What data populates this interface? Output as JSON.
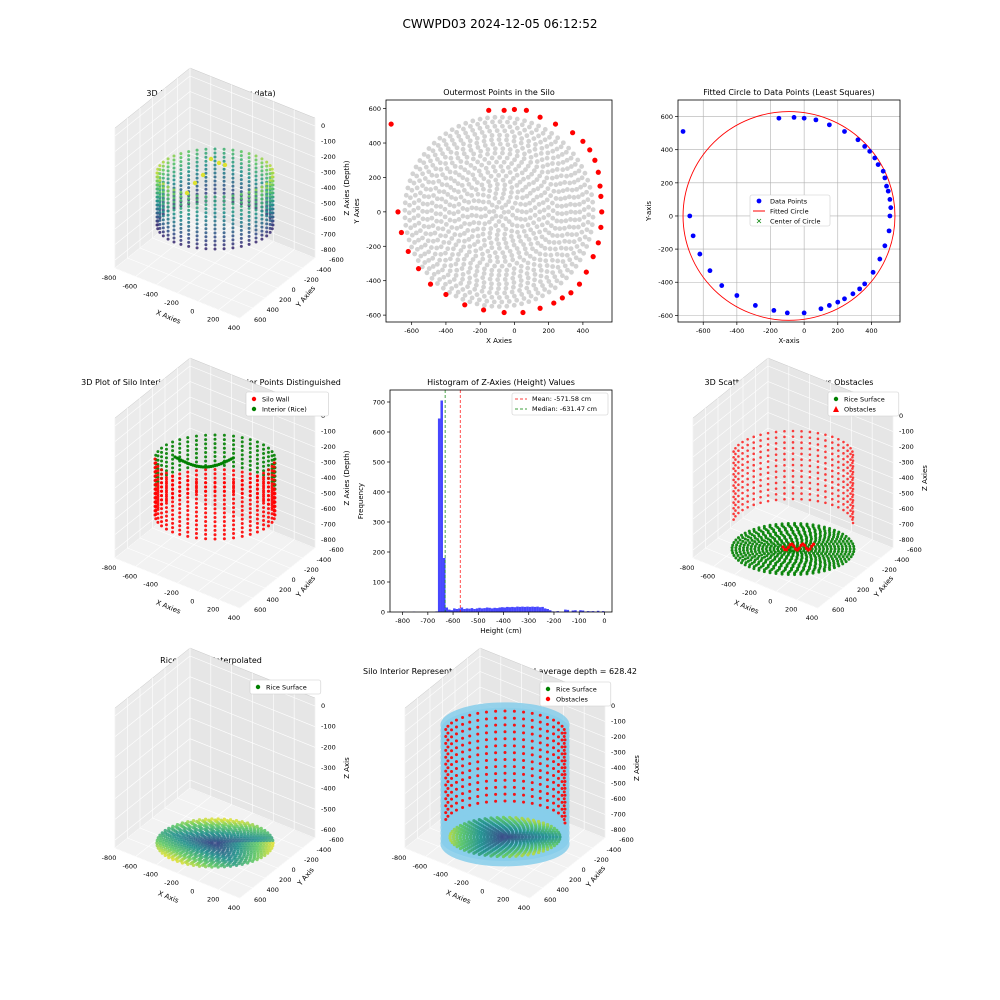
{
  "suptitle": "CWWPD03 2024-12-05 06:12:52",
  "palette": {
    "gray": "#d3d3d3",
    "red": "#ff0000",
    "blue": "#0000ff",
    "green": "#008000",
    "sky": "#87ceeb",
    "hist": "#0000ff"
  },
  "chart_data": [
    {
      "id": "p1",
      "type": "scatter3d",
      "title": "3D Plot of Silo Interior(row data)",
      "xlabel": "X Axies",
      "ylabel": "Y Axies",
      "zlabel": "Z Axies (Depth)",
      "xticks": [
        "-800",
        "-600",
        "-400",
        "-200",
        "0",
        "200",
        "400"
      ],
      "yticks": [
        "-600",
        "-400",
        "-200",
        "0",
        "200",
        "400",
        "600"
      ],
      "zticks": [
        "0",
        "-100",
        "-200",
        "-300",
        "-400",
        "-500",
        "-600",
        "-700",
        "-800"
      ],
      "colormap": "viridis"
    },
    {
      "id": "p2",
      "type": "scatter",
      "title": "Outermost Points in the Silo",
      "xlabel": "X Axies",
      "ylabel": "Y Axies",
      "xlim": [
        -750,
        570
      ],
      "ylim": [
        -640,
        650
      ],
      "xticks": [
        -600,
        -400,
        -200,
        0,
        200,
        400
      ],
      "yticks": [
        -600,
        -400,
        -200,
        0,
        200,
        400,
        600
      ],
      "series": [
        {
          "role": "outer",
          "color": "#ff0000",
          "points": [
            [
              -720,
              510
            ],
            [
              -680,
              0
            ],
            [
              -660,
              -120
            ],
            [
              -620,
              -230
            ],
            [
              -560,
              -330
            ],
            [
              -490,
              -420
            ],
            [
              -400,
              -480
            ],
            [
              -290,
              -540
            ],
            [
              -180,
              -570
            ],
            [
              -60,
              -585
            ],
            [
              50,
              -585
            ],
            [
              150,
              -560
            ],
            [
              230,
              -530
            ],
            [
              280,
              -500
            ],
            [
              330,
              -470
            ],
            [
              380,
              -420
            ],
            [
              420,
              -350
            ],
            [
              460,
              -260
            ],
            [
              490,
              -180
            ],
            [
              505,
              -90
            ],
            [
              510,
              0
            ],
            [
              505,
              90
            ],
            [
              500,
              150
            ],
            [
              490,
              230
            ],
            [
              470,
              300
            ],
            [
              440,
              360
            ],
            [
              400,
              410
            ],
            [
              340,
              460
            ],
            [
              240,
              510
            ],
            [
              150,
              550
            ],
            [
              70,
              590
            ],
            [
              0,
              595
            ],
            [
              -60,
              590
            ],
            [
              -150,
              590
            ]
          ]
        },
        {
          "role": "interior",
          "color": "#d3d3d3",
          "generated": true
        }
      ]
    },
    {
      "id": "p3",
      "type": "scatter+circle",
      "title": "Fitted Circle to Data Points (Least Squares)",
      "xlabel": "X-axis",
      "ylabel": "Y-axis",
      "xlim": [
        -750,
        570
      ],
      "ylim": [
        -640,
        700
      ],
      "xticks": [
        -600,
        -400,
        -200,
        0,
        200,
        400
      ],
      "yticks": [
        -600,
        -400,
        -200,
        0,
        200,
        400,
        600
      ],
      "grid": true,
      "legend": "center",
      "circle": {
        "cx": -90,
        "cy": 0,
        "r": 630
      },
      "legend_entries": [
        "Data Points",
        "Fitted Circle",
        "Center of Circle"
      ],
      "series": [
        {
          "name": "Data Points",
          "color": "#0000ff",
          "points": [
            [
              -720,
              510
            ],
            [
              -680,
              0
            ],
            [
              -660,
              -120
            ],
            [
              -620,
              -230
            ],
            [
              -560,
              -330
            ],
            [
              -490,
              -420
            ],
            [
              -400,
              -480
            ],
            [
              -290,
              -540
            ],
            [
              -180,
              -570
            ],
            [
              -100,
              -585
            ],
            [
              0,
              -585
            ],
            [
              100,
              -560
            ],
            [
              150,
              -540
            ],
            [
              200,
              -520
            ],
            [
              240,
              -500
            ],
            [
              290,
              -470
            ],
            [
              330,
              -440
            ],
            [
              360,
              -410
            ],
            [
              410,
              -340
            ],
            [
              450,
              -260
            ],
            [
              480,
              -180
            ],
            [
              505,
              -90
            ],
            [
              510,
              0
            ],
            [
              515,
              50
            ],
            [
              510,
              100
            ],
            [
              500,
              150
            ],
            [
              490,
              180
            ],
            [
              480,
              230
            ],
            [
              470,
              270
            ],
            [
              440,
              310
            ],
            [
              420,
              350
            ],
            [
              390,
              390
            ],
            [
              360,
              420
            ],
            [
              320,
              460
            ],
            [
              240,
              510
            ],
            [
              150,
              550
            ],
            [
              70,
              580
            ],
            [
              0,
              590
            ],
            [
              -60,
              595
            ],
            [
              -150,
              590
            ]
          ]
        }
      ]
    },
    {
      "id": "p4",
      "type": "scatter3d",
      "title": "3D Plot of Silo Interior with Wall and Interior Points Distinguished",
      "xlabel": "X Axies",
      "ylabel": "Y Axies",
      "zlabel": "Z Axies (Depth)",
      "xticks": [
        "-800",
        "-600",
        "-400",
        "-200",
        "0",
        "200",
        "400"
      ],
      "yticks": [
        "-600",
        "-400",
        "-200",
        "0",
        "200",
        "400",
        "600"
      ],
      "zticks": [
        "0",
        "-100",
        "-200",
        "-300",
        "-400",
        "-500",
        "-600",
        "-700",
        "-800"
      ],
      "legend_entries": [
        "Silo Wall",
        "Interior (Rice)"
      ],
      "legend": "top-right"
    },
    {
      "id": "p5",
      "type": "histogram",
      "title": "Histogram of Z-Axies (Height) Values",
      "xlabel": "Height (cm)",
      "ylabel": "Frequency",
      "xlim": [
        -850,
        30
      ],
      "ylim": [
        0,
        740
      ],
      "xticks": [
        -800,
        -700,
        -600,
        -500,
        -400,
        -300,
        -200,
        -100,
        0
      ],
      "yticks": [
        0,
        100,
        200,
        300,
        400,
        500,
        600,
        700
      ],
      "bin_width": 10,
      "bins": [
        [
          -800,
          1
        ],
        [
          -790,
          0
        ],
        [
          -780,
          0
        ],
        [
          -770,
          0
        ],
        [
          -760,
          1
        ],
        [
          -750,
          0
        ],
        [
          -740,
          0
        ],
        [
          -730,
          0
        ],
        [
          -720,
          0
        ],
        [
          -710,
          0
        ],
        [
          -700,
          0
        ],
        [
          -690,
          0
        ],
        [
          -680,
          0
        ],
        [
          -670,
          2
        ],
        [
          -660,
          645
        ],
        [
          -650,
          705
        ],
        [
          -640,
          180
        ],
        [
          -630,
          15
        ],
        [
          -620,
          8
        ],
        [
          -610,
          6
        ],
        [
          -600,
          12
        ],
        [
          -590,
          10
        ],
        [
          -580,
          12
        ],
        [
          -570,
          15
        ],
        [
          -560,
          10
        ],
        [
          -550,
          12
        ],
        [
          -540,
          11
        ],
        [
          -530,
          13
        ],
        [
          -520,
          10
        ],
        [
          -510,
          12
        ],
        [
          -500,
          14
        ],
        [
          -490,
          12
        ],
        [
          -480,
          13
        ],
        [
          -470,
          15
        ],
        [
          -460,
          14
        ],
        [
          -450,
          12
        ],
        [
          -440,
          14
        ],
        [
          -430,
          13
        ],
        [
          -420,
          15
        ],
        [
          -410,
          16
        ],
        [
          -400,
          15
        ],
        [
          -390,
          17
        ],
        [
          -380,
          16
        ],
        [
          -370,
          17
        ],
        [
          -360,
          16
        ],
        [
          -350,
          18
        ],
        [
          -340,
          17
        ],
        [
          -330,
          18
        ],
        [
          -320,
          17
        ],
        [
          -310,
          18
        ],
        [
          -300,
          17
        ],
        [
          -290,
          18
        ],
        [
          -280,
          17
        ],
        [
          -270,
          18
        ],
        [
          -260,
          16
        ],
        [
          -250,
          17
        ],
        [
          -240,
          12
        ],
        [
          -230,
          10
        ],
        [
          -220,
          6
        ],
        [
          -210,
          2
        ],
        [
          -200,
          1
        ],
        [
          -190,
          3
        ],
        [
          -180,
          0
        ],
        [
          -170,
          0
        ],
        [
          -160,
          8
        ],
        [
          -150,
          7
        ],
        [
          -140,
          0
        ],
        [
          -130,
          5
        ],
        [
          -120,
          6
        ],
        [
          -110,
          0
        ],
        [
          -100,
          6
        ],
        [
          -90,
          5
        ],
        [
          -80,
          0
        ],
        [
          -70,
          3
        ],
        [
          -60,
          2
        ],
        [
          -50,
          3
        ],
        [
          -40,
          0
        ],
        [
          -30,
          4
        ],
        [
          -20,
          0
        ],
        [
          -10,
          3
        ]
      ],
      "mean": -571.58,
      "median": -631.47,
      "legend_entries": [
        "Mean: -571.58 cm",
        "Median: -631.47 cm"
      ],
      "legend": "top-right"
    },
    {
      "id": "p6",
      "type": "scatter3d",
      "title": "3D Scatter Plot: Rice Surface vs Obstacles",
      "xlabel": "X Axies",
      "ylabel": "Y Axies",
      "zlabel": "Z Axies",
      "xticks": [
        "-800",
        "-600",
        "-400",
        "-200",
        "0",
        "200",
        "400"
      ],
      "yticks": [
        "-600",
        "-400",
        "-200",
        "0",
        "200",
        "400",
        "600"
      ],
      "zticks": [
        "0",
        "-100",
        "-200",
        "-300",
        "-400",
        "-500",
        "-600",
        "-700",
        "-800"
      ],
      "legend_entries": [
        "Rice Surface",
        "Obstacles"
      ],
      "legend": "top-right"
    },
    {
      "id": "p7",
      "type": "surface3d",
      "title": "Rice Surface Interpolated\ndepth = 628.42",
      "title_lines": [
        "Rice Surface Interpolated",
        "depth = 628.42"
      ],
      "xlabel": "X Axis",
      "ylabel": "Y Axis",
      "zlabel": "Z Axis",
      "xticks": [
        "-800",
        "-600",
        "-400",
        "-200",
        "0",
        "200",
        "400"
      ],
      "yticks": [
        "-600",
        "-400",
        "-200",
        "0",
        "200",
        "400",
        "600"
      ],
      "zticks": [
        "0",
        "-100",
        "-200",
        "-300",
        "-400",
        "-500",
        "-600"
      ],
      "legend_entries": [
        "Rice Surface"
      ],
      "legend": "top-right"
    },
    {
      "id": "p8",
      "type": "scatter3d",
      "title": "Silo Interior Representation using weighted average depth = 628.42",
      "xlabel": "X Axies",
      "ylabel": "Y Axies",
      "zlabel": "Z Axies",
      "xticks": [
        "-800",
        "-600",
        "-400",
        "-200",
        "0",
        "200",
        "400"
      ],
      "yticks": [
        "-600",
        "-400",
        "-200",
        "0",
        "200",
        "400",
        "600"
      ],
      "zticks": [
        "0",
        "-100",
        "-200",
        "-300",
        "-400",
        "-500",
        "-600",
        "-700",
        "-800"
      ],
      "legend_entries": [
        "Rice Surface",
        "Obstacles"
      ],
      "legend": "top-right"
    }
  ]
}
